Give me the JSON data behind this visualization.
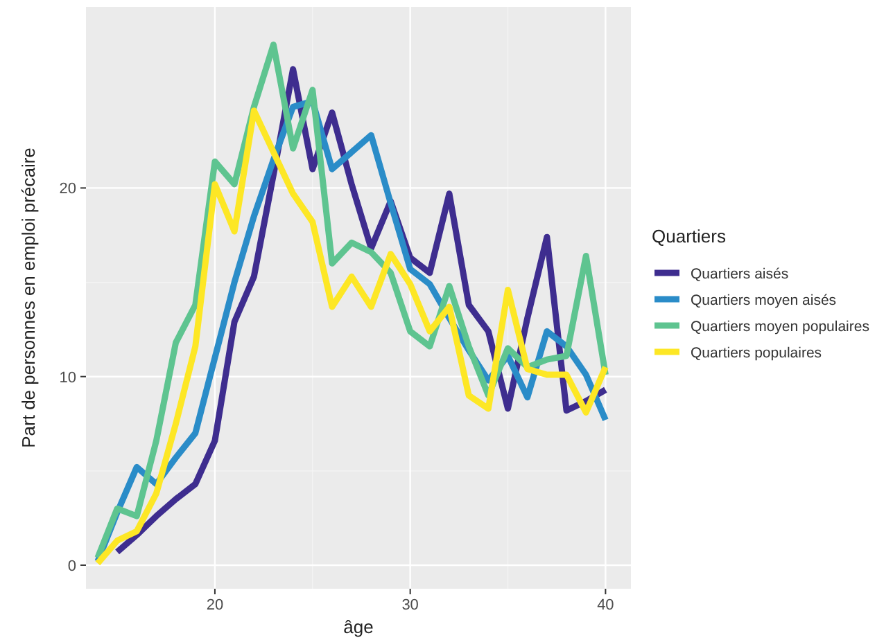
{
  "chart_data": {
    "type": "line",
    "xlabel": "âge",
    "ylabel": "Part de personnes en emploi précaire",
    "legend_title": "Quartiers",
    "legend": "right",
    "grid": true,
    "xlim": [
      13.4,
      41.3
    ],
    "ylim": [
      -1.25,
      29.6
    ],
    "xticks": [
      20,
      30,
      40
    ],
    "yticks": [
      0,
      10,
      20
    ],
    "series": [
      {
        "name": "Quartiers aisés",
        "color": "#3e2d8f",
        "x": [
          15,
          16,
          17,
          18,
          19,
          20,
          21,
          22,
          23,
          24,
          25,
          26,
          27,
          28,
          29,
          30,
          31,
          32,
          33,
          34,
          35,
          36,
          37,
          38,
          39,
          40
        ],
        "values": [
          0.7,
          1.6,
          2.6,
          3.5,
          4.3,
          6.6,
          12.9,
          15.3,
          20.7,
          26.3,
          21.0,
          24.0,
          20.2,
          16.8,
          19.3,
          16.3,
          15.5,
          19.7,
          13.8,
          12.4,
          8.3,
          13.1,
          17.4,
          8.2,
          8.7,
          9.3
        ]
      },
      {
        "name": "Quartiers moyen aisés",
        "color": "#2a8cc8",
        "x": [
          14,
          15,
          16,
          17,
          18,
          19,
          20,
          21,
          22,
          23,
          24,
          25,
          26,
          27,
          28,
          29,
          30,
          31,
          32,
          33,
          34,
          35,
          36,
          37,
          38,
          39,
          40
        ],
        "values": [
          0.2,
          2.8,
          5.2,
          4.3,
          5.7,
          7.0,
          11.0,
          15.0,
          18.5,
          21.5,
          24.3,
          24.6,
          21.0,
          21.9,
          22.8,
          19.2,
          15.7,
          14.9,
          13.1,
          11.4,
          9.8,
          11.1,
          8.9,
          12.4,
          11.6,
          10.1,
          7.7
        ]
      },
      {
        "name": "Quartiers moyen populaires",
        "color": "#5ec490",
        "x": [
          14,
          15,
          16,
          17,
          18,
          19,
          20,
          21,
          22,
          23,
          24,
          25,
          26,
          27,
          28,
          29,
          30,
          31,
          32,
          33,
          34,
          35,
          36,
          37,
          38,
          39,
          40
        ],
        "values": [
          0.4,
          3.0,
          2.6,
          6.6,
          11.8,
          13.8,
          21.4,
          20.2,
          24.3,
          27.6,
          22.1,
          25.2,
          16.0,
          17.1,
          16.6,
          15.5,
          12.4,
          11.6,
          14.8,
          11.6,
          9.0,
          11.5,
          10.5,
          10.9,
          11.1,
          16.4,
          10.1
        ]
      },
      {
        "name": "Quartiers populaires",
        "color": "#fde725",
        "x": [
          14,
          15,
          16,
          17,
          18,
          19,
          20,
          21,
          22,
          23,
          24,
          25,
          26,
          27,
          28,
          29,
          30,
          31,
          32,
          33,
          34,
          35,
          36,
          37,
          38,
          39,
          40
        ],
        "values": [
          0.1,
          1.3,
          1.8,
          3.8,
          7.5,
          11.6,
          20.2,
          17.7,
          24.1,
          21.9,
          19.7,
          18.2,
          13.7,
          15.3,
          13.7,
          16.5,
          14.9,
          12.4,
          13.7,
          9.0,
          8.3,
          14.6,
          10.4,
          10.1,
          10.1,
          8.1,
          10.5
        ]
      }
    ]
  }
}
